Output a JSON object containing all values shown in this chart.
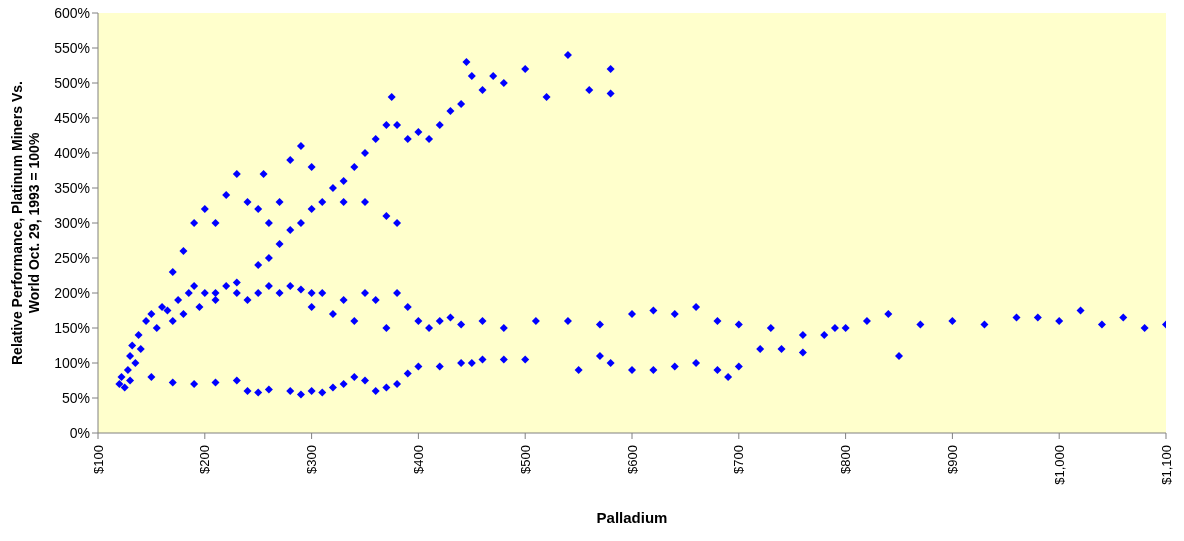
{
  "chart_data": {
    "type": "scatter",
    "xlabel": "Palladium",
    "ylabel": "Relative Performance, Platinum Miners Vs. World Oct. 29, 1993 = 100%",
    "xlim": [
      100,
      1100
    ],
    "ylim": [
      0,
      600
    ],
    "xticks": [
      {
        "value": 100,
        "label": "$100"
      },
      {
        "value": 200,
        "label": "$200"
      },
      {
        "value": 300,
        "label": "$300"
      },
      {
        "value": 400,
        "label": "$400"
      },
      {
        "value": 500,
        "label": "$500"
      },
      {
        "value": 600,
        "label": "$600"
      },
      {
        "value": 700,
        "label": "$700"
      },
      {
        "value": 800,
        "label": "$800"
      },
      {
        "value": 900,
        "label": "$900"
      },
      {
        "value": 1000,
        "label": "$1,000"
      },
      {
        "value": 1100,
        "label": "$1,100"
      }
    ],
    "yticks": [
      {
        "value": 0,
        "label": "0%"
      },
      {
        "value": 50,
        "label": "50%"
      },
      {
        "value": 100,
        "label": "100%"
      },
      {
        "value": 150,
        "label": "150%"
      },
      {
        "value": 200,
        "label": "200%"
      },
      {
        "value": 250,
        "label": "250%"
      },
      {
        "value": 300,
        "label": "300%"
      },
      {
        "value": 350,
        "label": "350%"
      },
      {
        "value": 400,
        "label": "400%"
      },
      {
        "value": 450,
        "label": "450%"
      },
      {
        "value": 500,
        "label": "500%"
      },
      {
        "value": 550,
        "label": "550%"
      },
      {
        "value": 600,
        "label": "600%"
      }
    ],
    "grid": false,
    "marker": "diamond",
    "legend": false,
    "series": [
      {
        "color": "#0000ff",
        "x": [
          120,
          122,
          125,
          128,
          130,
          132,
          135,
          138,
          140,
          145,
          150,
          155,
          160,
          165,
          170,
          175,
          180,
          185,
          190,
          195,
          200,
          210,
          220,
          230,
          240,
          250,
          260,
          270,
          280,
          290,
          300,
          130,
          150,
          170,
          190,
          210,
          230,
          240,
          250,
          260,
          280,
          290,
          300,
          310,
          320,
          330,
          340,
          350,
          360,
          370,
          380,
          390,
          400,
          420,
          440,
          450,
          460,
          480,
          500,
          550,
          570,
          580,
          600,
          620,
          640,
          660,
          680,
          690,
          700,
          720,
          740,
          760,
          780,
          800,
          820,
          840,
          850,
          870,
          900,
          930,
          960,
          980,
          1000,
          1020,
          1040,
          1060,
          1080,
          1100,
          300,
          310,
          320,
          330,
          340,
          350,
          360,
          370,
          380,
          390,
          400,
          410,
          420,
          430,
          440,
          460,
          480,
          510,
          540,
          570,
          600,
          620,
          640,
          660,
          680,
          700,
          730,
          760,
          790,
          170,
          180,
          190,
          200,
          210,
          220,
          230,
          240,
          250,
          255,
          260,
          270,
          280,
          290,
          300,
          210,
          230,
          250,
          260,
          270,
          280,
          290,
          300,
          310,
          320,
          330,
          340,
          350,
          360,
          370,
          375,
          380,
          390,
          400,
          410,
          420,
          430,
          440,
          445,
          450,
          460,
          470,
          480,
          500,
          520,
          540,
          560,
          580,
          580,
          330,
          350,
          370,
          380
        ],
        "values": [
          70,
          80,
          65,
          90,
          110,
          125,
          100,
          140,
          120,
          160,
          170,
          150,
          180,
          175,
          160,
          190,
          170,
          200,
          210,
          180,
          200,
          190,
          210,
          200,
          190,
          200,
          210,
          200,
          210,
          205,
          200,
          75,
          80,
          72,
          70,
          72,
          75,
          60,
          58,
          62,
          60,
          55,
          60,
          58,
          65,
          70,
          80,
          75,
          60,
          65,
          70,
          85,
          95,
          95,
          100,
          100,
          105,
          105,
          105,
          90,
          110,
          100,
          90,
          90,
          95,
          100,
          90,
          80,
          95,
          120,
          120,
          115,
          140,
          150,
          160,
          170,
          110,
          155,
          160,
          155,
          165,
          165,
          160,
          175,
          155,
          165,
          150,
          155,
          180,
          200,
          170,
          190,
          160,
          200,
          190,
          150,
          200,
          180,
          160,
          150,
          160,
          165,
          155,
          160,
          150,
          160,
          160,
          155,
          170,
          175,
          170,
          180,
          160,
          155,
          150,
          140,
          150,
          230,
          260,
          300,
          320,
          300,
          340,
          370,
          330,
          320,
          370,
          300,
          330,
          390,
          410,
          380,
          200,
          215,
          240,
          250,
          270,
          290,
          300,
          320,
          330,
          350,
          360,
          380,
          400,
          420,
          440,
          480,
          440,
          420,
          430,
          420,
          440,
          460,
          470,
          530,
          510,
          490,
          510,
          500,
          520,
          480,
          540,
          490,
          520,
          485,
          330,
          330,
          310,
          300
        ]
      }
    ]
  }
}
